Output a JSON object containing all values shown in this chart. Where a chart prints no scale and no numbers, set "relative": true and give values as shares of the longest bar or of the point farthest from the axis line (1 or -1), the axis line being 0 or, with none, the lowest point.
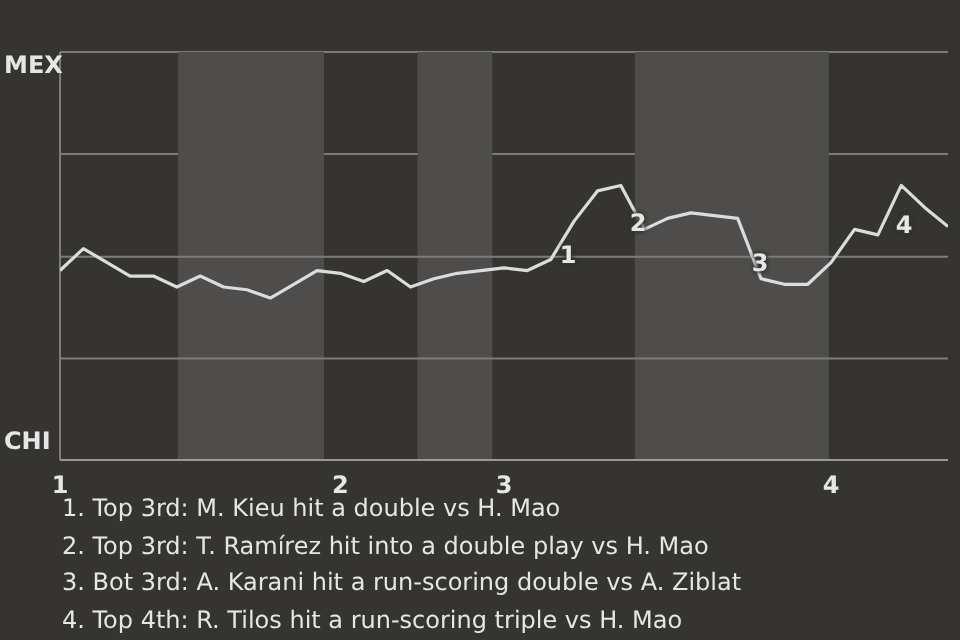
{
  "chart_data": {
    "type": "line",
    "relative": true,
    "ref_lines": [
      {
        "axis": "y",
        "value": 0.74,
        "color": "#7d7c7a"
      },
      {
        "axis": "y",
        "value": 0.37,
        "color": "#7d7c7a"
      }
    ],
    "categories": [
      "1",
      null,
      null,
      null,
      null,
      null,
      null,
      null,
      null,
      null,
      null,
      null,
      "2",
      null,
      null,
      null,
      null,
      null,
      null,
      "3",
      null,
      null,
      null,
      null,
      null,
      null,
      null,
      null,
      null,
      null,
      null,
      null,
      null,
      "4",
      null,
      null,
      null,
      null,
      null
    ],
    "series": [
      {
        "color": "#dcdcdc",
        "values": [
          0.69,
          0.77,
          0.72,
          0.67,
          0.67,
          0.63,
          0.67,
          0.63,
          0.62,
          0.59,
          0.64,
          0.69,
          0.68,
          0.65,
          0.69,
          0.63,
          0.66,
          0.68,
          0.69,
          0.7,
          0.69,
          0.73,
          0.87,
          0.98,
          1,
          0.84,
          0.88,
          0.9,
          0.89,
          0.88,
          0.66,
          0.64,
          0.64,
          0.72,
          0.84,
          0.82,
          1,
          0.92,
          0.85
        ]
      }
    ],
    "annotations": [
      "MEX",
      "CHI",
      "1",
      "2",
      "3",
      "4",
      "1. Top 3rd: M. Kieu hit a double vs H. Mao",
      "2. Top 3rd: T. Ramírez hit into a double play vs H. Mao",
      "3. Bot 3rd: A. Karani hit a run-scoring double vs A. Ziblat",
      "4. Top 4th: R. Tilos hit a run-scoring triple vs H. Mao"
    ]
  }
}
